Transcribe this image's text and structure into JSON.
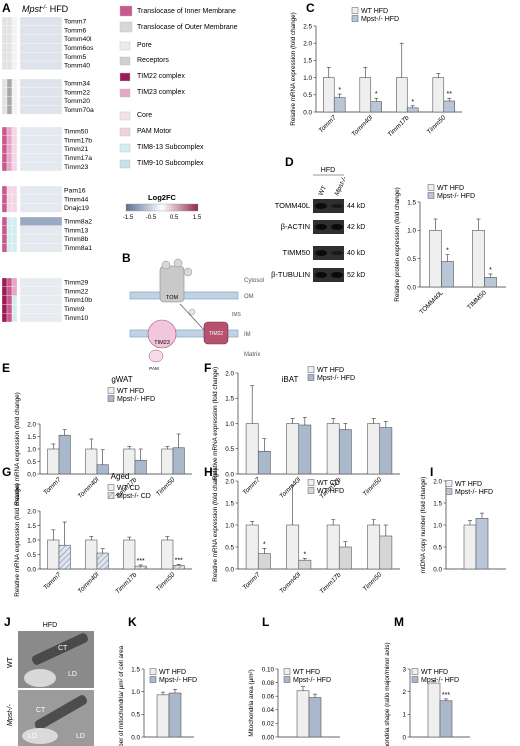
{
  "colors": {
    "wt": "#ececec",
    "ko_blue": "#a9b8cc",
    "ko_grey": "#c8c8c8",
    "ko_hatch": "#7b8fb0",
    "magenta_dark": "#9c1a57",
    "magenta": "#c85a8f",
    "pink": "#e6a7c6",
    "pink_light": "#f4d6e4",
    "cyan_light": "#d4eef0",
    "grey_cell": "#e2e2e2",
    "grey_dark_cell": "#a8a8a8",
    "heat_blue": "#9aaac3"
  },
  "panel_letters": {
    "A": "A",
    "B": "B",
    "C": "C",
    "D": "D",
    "E": "E",
    "F": "F",
    "G": "G",
    "H": "H",
    "I": "I",
    "J": "J",
    "K": "K",
    "L": "L",
    "M": "M"
  },
  "significance": {
    "one": "*",
    "two": "**",
    "three": "***"
  },
  "heatmap": {
    "title_prefix": "Mpst",
    "title_sup": "-/-",
    "title_suffix": " HFD",
    "genes": [
      "Tomm7",
      "Tomm6",
      "Tomm40l",
      "Tomm6os",
      "Tomm5",
      "Tomm40",
      "Tomm34",
      "Tomm22",
      "Tomm20",
      "Tomm70a",
      "Timm50",
      "Timm17b",
      "Timm21",
      "Timm17a",
      "Timm23",
      "Pam16",
      "Timm44",
      "Dnajc19",
      "Timm8a2",
      "Timm13",
      "Timm8b",
      "Timm8a1",
      "Timm29",
      "Timm22",
      "Timm10b",
      "Timm9",
      "Timm10"
    ],
    "legend": {
      "groups": [
        {
          "label": "Translocase of Inner Membrane",
          "color": "#c85a8f"
        },
        {
          "label": "Translocase of Outer Membrane",
          "color": "#d7d7d7"
        },
        {
          "label": "Pore",
          "color": "#ececec"
        },
        {
          "label": "Receptors",
          "color": "#d0d0d0"
        },
        {
          "label": "TIM22 complex",
          "color": "#9c1a57"
        },
        {
          "label": "TIM23 complex",
          "color": "#e6a7c6"
        },
        {
          "label": "Core",
          "color": "#f6e1ea"
        },
        {
          "label": "PAM Motor",
          "color": "#f1d0de"
        },
        {
          "label": "TIM8-13 Subcomplex",
          "color": "#d4eef0"
        },
        {
          "label": "TIM9-10 Subcomplex",
          "color": "#c4e2e8"
        }
      ],
      "scale_title": "Log2FC",
      "scale_ticks": [
        "-1.5",
        "-0.5",
        "0.5",
        "1.5"
      ]
    }
  },
  "diagram": {
    "cytosol": "Cytosol",
    "om": "OM",
    "ims": "IMS",
    "im": "IM",
    "matrix": "Matrix",
    "tom": "TOM",
    "tim23": "TIM23",
    "tim22": "TIM22",
    "pam": "PAM"
  },
  "western": {
    "header": "HFD",
    "lanes": [
      "WT",
      "Mpst-/-"
    ],
    "bands": [
      {
        "name": "TOMM40L",
        "kd": "44 kD"
      },
      {
        "name": "β-ACTIN",
        "kd": "42 kD"
      },
      {
        "name": "TIMM50",
        "kd": "40 kD"
      },
      {
        "name": "β-TUBULIN",
        "kd": "52 kD"
      }
    ]
  },
  "em": {
    "header": "HFD",
    "rows": [
      "WT",
      "Mpst-/-"
    ],
    "labels": [
      "CT",
      "LD"
    ]
  },
  "chart_data": [
    {
      "panel": "C",
      "type": "bar",
      "title": "",
      "ylabel": "Relative mRNA expression (fold change)",
      "ylim": [
        0,
        2.5
      ],
      "ticks": [
        "0.0",
        "0.5",
        "1.0",
        "1.5",
        "2.0",
        "2.5"
      ],
      "categories": [
        "Tomm7",
        "Tomm40l",
        "Timm17b",
        "Timm50"
      ],
      "series": [
        {
          "name": "WT HFD",
          "values": [
            1.0,
            1.0,
            1.0,
            1.0
          ],
          "err": [
            0.3,
            0.3,
            1.0,
            0.12
          ]
        },
        {
          "name": "Mpst-/- HFD",
          "values": [
            0.42,
            0.3,
            0.12,
            0.32
          ],
          "err": [
            0.1,
            0.1,
            0.06,
            0.08
          ]
        }
      ],
      "sig": [
        "*",
        "*",
        "*",
        "**"
      ]
    },
    {
      "panel": "D",
      "type": "bar",
      "title": "",
      "ylabel": "Relative protein expression (fold change)",
      "ylim": [
        0,
        1.5
      ],
      "ticks": [
        "0.0",
        "0.5",
        "1.0",
        "1.5"
      ],
      "categories": [
        "TOMM40L",
        "TIMM50"
      ],
      "series": [
        {
          "name": "WT HFD",
          "values": [
            1.0,
            1.0
          ],
          "err": [
            0.2,
            0.2
          ]
        },
        {
          "name": "Mpst-/- HFD",
          "values": [
            0.45,
            0.17
          ],
          "err": [
            0.12,
            0.06
          ]
        }
      ],
      "sig": [
        "*",
        "*"
      ]
    },
    {
      "panel": "E",
      "type": "bar",
      "title": "gWAT",
      "ylabel": "Relative mRNA expression (fold change)",
      "ylim": [
        0,
        2.0
      ],
      "ticks": [
        "0.0",
        "0.5",
        "1.0",
        "1.5",
        "2.0"
      ],
      "categories": [
        "Tomm7",
        "Tomm40l",
        "Timm17b",
        "Timm50"
      ],
      "series": [
        {
          "name": "WT HFD",
          "values": [
            1.0,
            1.0,
            1.0,
            1.0
          ],
          "err": [
            0.2,
            0.4,
            0.1,
            0.1
          ]
        },
        {
          "name": "Mpst-/- HFD",
          "values": [
            1.55,
            0.37,
            0.55,
            1.05
          ],
          "err": [
            0.22,
            0.6,
            0.45,
            0.55
          ]
        }
      ],
      "sig": [
        "",
        "",
        "",
        ""
      ]
    },
    {
      "panel": "F",
      "type": "bar",
      "title": "iBAT",
      "ylabel": "Relative mRNA expression (fold change)",
      "ylim": [
        0,
        2.0
      ],
      "ticks": [
        "0.0",
        "0.5",
        "1.0",
        "1.5",
        "2.0"
      ],
      "categories": [
        "Tomm7",
        "Tomm40l",
        "Timm17b",
        "Timm50"
      ],
      "series": [
        {
          "name": "WT HFD",
          "values": [
            1.0,
            1.0,
            1.0,
            1.0
          ],
          "err": [
            0.75,
            0.1,
            0.1,
            0.1
          ]
        },
        {
          "name": "Mpst-/- HFD",
          "values": [
            0.45,
            0.97,
            0.88,
            0.92
          ],
          "err": [
            0.25,
            0.15,
            0.12,
            0.12
          ]
        }
      ],
      "sig": [
        "",
        "",
        "",
        ""
      ]
    },
    {
      "panel": "G",
      "type": "bar",
      "title": "Aged",
      "ylabel": "Relative mRNA expression (fold change)",
      "ylim": [
        0,
        2.0
      ],
      "ticks": [
        "0.0",
        "0.5",
        "1.0",
        "1.5",
        "2.0"
      ],
      "categories": [
        "Tomm7",
        "Tomm40l",
        "Timm17b",
        "Timm50"
      ],
      "series": [
        {
          "name": "WT CD",
          "values": [
            1.0,
            1.0,
            1.0,
            1.0
          ],
          "err": [
            0.35,
            0.12,
            0.1,
            0.12
          ]
        },
        {
          "name": "Mpst-/- CD",
          "values": [
            0.82,
            0.55,
            0.1,
            0.12
          ],
          "err": [
            0.8,
            0.15,
            0.04,
            0.04
          ]
        }
      ],
      "sig": [
        "",
        "",
        "***",
        "***"
      ]
    },
    {
      "panel": "H",
      "type": "bar",
      "title": "",
      "ylabel": "Relative mRNA expression (fold change)",
      "ylim": [
        0,
        2.0
      ],
      "ticks": [
        "0.0",
        "0.5",
        "1.0",
        "1.5",
        "2.0"
      ],
      "categories": [
        "Tomm7",
        "Tomm40l",
        "Timm17b",
        "Timm50"
      ],
      "series": [
        {
          "name": "WT CD",
          "values": [
            1.0,
            1.0,
            1.0,
            1.0
          ],
          "err": [
            0.08,
            0.9,
            0.12,
            0.12
          ]
        },
        {
          "name": "WT HFD",
          "values": [
            0.35,
            0.2,
            0.5,
            0.75
          ],
          "err": [
            0.12,
            0.04,
            0.12,
            0.25
          ]
        }
      ],
      "sig": [
        "*",
        "*",
        "",
        ""
      ]
    },
    {
      "panel": "I",
      "type": "bar",
      "title": "",
      "ylabel": "mtDNA copy number (fold change)",
      "ylim": [
        0,
        2.0
      ],
      "ticks": [
        "0.0",
        "0.5",
        "1.0",
        "1.5",
        "2.0"
      ],
      "categories": [
        ""
      ],
      "series": [
        {
          "name": "WT HFD",
          "values": [
            1.0
          ],
          "err": [
            0.1
          ]
        },
        {
          "name": "Mpst-/- HFD",
          "values": [
            1.15
          ],
          "err": [
            0.12
          ]
        }
      ],
      "sig": [
        ""
      ]
    },
    {
      "panel": "K",
      "type": "bar",
      "title": "",
      "ylabel": "Number of mitochondria/ µm² of cell area",
      "ylim": [
        0,
        1.5
      ],
      "ticks": [
        "0.0",
        "0.5",
        "1.0",
        "1.5"
      ],
      "categories": [
        ""
      ],
      "series": [
        {
          "name": "WT HFD",
          "values": [
            0.93
          ],
          "err": [
            0.06
          ]
        },
        {
          "name": "Mpst-/- HFD",
          "values": [
            0.97
          ],
          "err": [
            0.08
          ]
        }
      ],
      "sig": [
        ""
      ]
    },
    {
      "panel": "L",
      "type": "bar",
      "title": "",
      "ylabel": "Mitochondria area (µm²)",
      "ylim": [
        0,
        0.1
      ],
      "ticks": [
        "0.00",
        "0.02",
        "0.04",
        "0.06",
        "0.08",
        "0.10"
      ],
      "categories": [
        ""
      ],
      "series": [
        {
          "name": "WT HFD",
          "values": [
            0.068
          ],
          "err": [
            0.006
          ]
        },
        {
          "name": "Mpst-/- HFD",
          "values": [
            0.058
          ],
          "err": [
            0.005
          ]
        }
      ],
      "sig": [
        ""
      ]
    },
    {
      "panel": "M",
      "type": "bar",
      "title": "",
      "ylabel": "Mitochondria shape (ratio major/minor axis)",
      "ylim": [
        0,
        3
      ],
      "ticks": [
        "0",
        "1",
        "2",
        "3"
      ],
      "categories": [
        ""
      ],
      "series": [
        {
          "name": "WT HFD",
          "values": [
            2.38
          ],
          "err": [
            0.12
          ]
        },
        {
          "name": "Mpst-/- HFD",
          "values": [
            1.6
          ],
          "err": [
            0.08
          ]
        }
      ],
      "sig": [
        "***"
      ]
    }
  ]
}
